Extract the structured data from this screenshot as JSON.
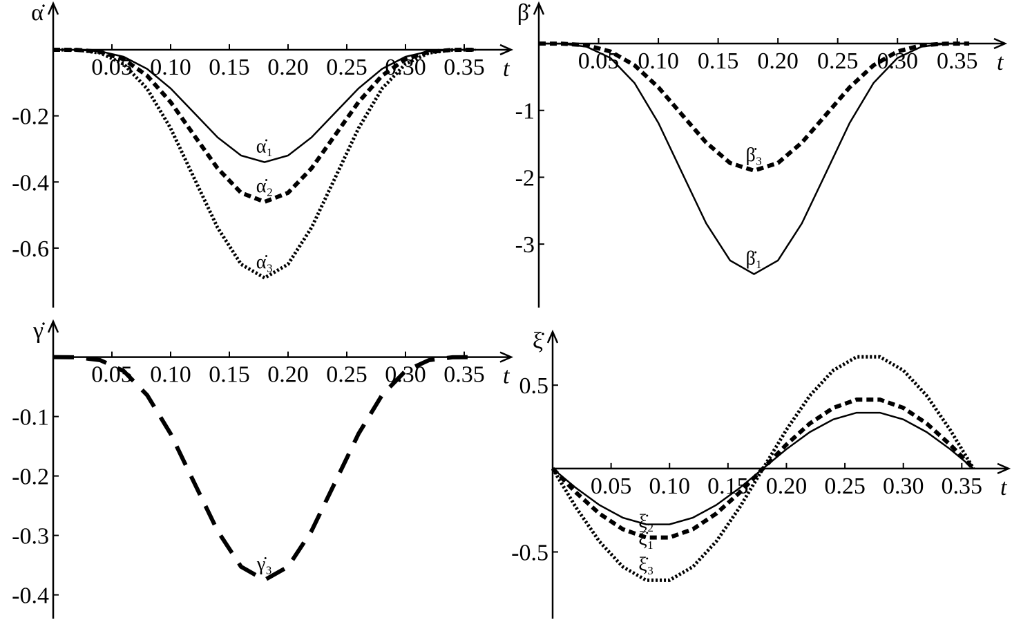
{
  "chart_data": [
    {
      "type": "line",
      "xlabel": "t",
      "ylabel": "α̇",
      "xlim": [
        0,
        0.39
      ],
      "ylim": [
        -0.78,
        0.14
      ],
      "xticks": [
        0.05,
        {
          "value": 0.1,
          "label": "0.10"
        },
        0.15,
        {
          "value": 0.2,
          "label": "0.20"
        },
        0.25,
        {
          "value": 0.3,
          "label": "0.30"
        },
        0.35
      ],
      "yticks": [
        -0.2,
        -0.4,
        -0.6
      ],
      "x": [
        0,
        0.02,
        0.04,
        0.06,
        0.08,
        0.1,
        0.12,
        0.14,
        0.16,
        0.18,
        0.2,
        0.22,
        0.24,
        0.26,
        0.28,
        0.3,
        0.32,
        0.34,
        0.36
      ],
      "series": [
        {
          "name": "α̇₁",
          "color": "#000000",
          "dash": "solid",
          "values": [
            0,
            -0.0003,
            -0.0047,
            -0.0213,
            -0.058,
            -0.117,
            -0.191,
            -0.265,
            -0.32,
            -0.34,
            -0.32,
            -0.265,
            -0.191,
            -0.117,
            -0.058,
            -0.0213,
            -0.0047,
            -0.0003,
            0
          ]
        },
        {
          "name": "α̇₂",
          "color": "#000000",
          "dash": "dashed",
          "values": [
            0,
            -0.0004,
            -0.0063,
            -0.0288,
            -0.0785,
            -0.1584,
            -0.2588,
            -0.3587,
            -0.4326,
            -0.46,
            -0.4326,
            -0.3587,
            -0.2588,
            -0.1584,
            -0.0785,
            -0.0288,
            -0.0063,
            -0.0004,
            0
          ]
        },
        {
          "name": "α̇₃",
          "color": "#000000",
          "dash": "dotted",
          "values": [
            0,
            -0.0006,
            -0.0095,
            -0.0431,
            -0.1178,
            -0.2376,
            -0.3881,
            -0.538,
            -0.6489,
            -0.69,
            -0.6489,
            -0.538,
            -0.3881,
            -0.2376,
            -0.1178,
            -0.0431,
            -0.0095,
            -0.0006,
            0
          ]
        }
      ]
    },
    {
      "type": "line",
      "xlabel": "t",
      "ylabel": "β̇",
      "xlim": [
        0,
        0.39
      ],
      "ylim": [
        -3.95,
        0.6
      ],
      "xticks": [
        0.05,
        {
          "value": 0.1,
          "label": "0.10"
        },
        0.15,
        {
          "value": 0.2,
          "label": "0.20"
        },
        0.25,
        {
          "value": 0.3,
          "label": "0.30"
        },
        0.35
      ],
      "yticks": [
        -1,
        -2,
        -3
      ],
      "x": [
        0,
        0.02,
        0.04,
        0.06,
        0.08,
        0.1,
        0.12,
        0.14,
        0.16,
        0.18,
        0.2,
        0.22,
        0.24,
        0.26,
        0.28,
        0.3,
        0.32,
        0.34,
        0.36
      ],
      "series": [
        {
          "name": "β̇₁",
          "color": "#000000",
          "dash": "solid",
          "values": [
            0,
            -0.0031,
            -0.0473,
            -0.2156,
            -0.5889,
            -1.1878,
            -1.9406,
            -2.69,
            -3.2447,
            -3.45,
            -3.2447,
            -2.69,
            -1.9406,
            -1.1878,
            -0.5889,
            -0.2156,
            -0.0473,
            -0.0031,
            0
          ]
        },
        {
          "name": "β̇₃",
          "color": "#000000",
          "dash": "dashed",
          "values": [
            0,
            -0.0017,
            -0.026,
            -0.1188,
            -0.3243,
            -0.6542,
            -1.0688,
            -1.4814,
            -1.787,
            -1.9,
            -1.787,
            -1.4814,
            -1.0688,
            -0.6542,
            -0.3243,
            -0.1188,
            -0.026,
            -0.0017,
            0
          ]
        }
      ]
    },
    {
      "type": "line",
      "xlabel": "t",
      "ylabel": "γ̇",
      "xlim": [
        0,
        0.39
      ],
      "ylim": [
        -0.44,
        0.06
      ],
      "xticks": [
        0.05,
        {
          "value": 0.1,
          "label": "0.10"
        },
        0.15,
        {
          "value": 0.2,
          "label": "0.20"
        },
        0.25,
        {
          "value": 0.3,
          "label": "0.30"
        },
        0.35
      ],
      "yticks": [
        -0.1,
        -0.2,
        -0.3,
        -0.4
      ],
      "x": [
        0,
        0.02,
        0.04,
        0.06,
        0.08,
        0.1,
        0.12,
        0.14,
        0.16,
        0.18,
        0.2,
        0.22,
        0.24,
        0.26,
        0.28,
        0.3,
        0.32,
        0.34,
        0.36
      ],
      "series": [
        {
          "name": "γ̇₃",
          "color": "#000000",
          "dash": "long-dashed",
          "values": [
            0,
            -0.0003,
            -0.0051,
            -0.0234,
            -0.064,
            -0.1291,
            -0.2109,
            -0.2924,
            -0.3527,
            -0.375,
            -0.3527,
            -0.2924,
            -0.2109,
            -0.1291,
            -0.064,
            -0.0234,
            -0.0051,
            -0.0003,
            0
          ]
        }
      ]
    },
    {
      "type": "line",
      "xlabel": "t",
      "ylabel": "ξ̇",
      "xlim": [
        0,
        0.39
      ],
      "ylim": [
        -0.9,
        0.82
      ],
      "xticks": [
        0.05,
        {
          "value": 0.1,
          "label": "0.10"
        },
        0.15,
        {
          "value": 0.2,
          "label": "0.20"
        },
        0.25,
        {
          "value": 0.3,
          "label": "0.30"
        },
        0.35
      ],
      "yticks": [
        0.5,
        -0.5
      ],
      "x": [
        0,
        0.02,
        0.04,
        0.06,
        0.08,
        0.1,
        0.12,
        0.14,
        0.16,
        0.18,
        0.2,
        0.22,
        0.24,
        0.26,
        0.28,
        0.3,
        0.32,
        0.34,
        0.36
      ],
      "series": [
        {
          "name": "ξ̇₁",
          "color": "#000000",
          "dash": "solid",
          "values": [
            0,
            -0.1163,
            -0.2186,
            -0.2944,
            -0.3348,
            -0.3348,
            -0.2944,
            -0.2186,
            -0.1163,
            0,
            0.1163,
            0.2186,
            0.2944,
            0.3348,
            0.3348,
            0.2944,
            0.2186,
            0.1163,
            0
          ]
        },
        {
          "name": "ξ̇₂",
          "color": "#000000",
          "dash": "dashed",
          "values": [
            0,
            -0.1436,
            -0.27,
            -0.3637,
            -0.4136,
            -0.4136,
            -0.3637,
            -0.27,
            -0.1436,
            0,
            0.1436,
            0.27,
            0.3637,
            0.4136,
            0.4136,
            0.3637,
            0.27,
            0.1436,
            0
          ]
        },
        {
          "name": "ξ̇₃",
          "color": "#000000",
          "dash": "dotted",
          "values": [
            0,
            -0.2326,
            -0.4371,
            -0.5889,
            -0.6697,
            -0.6697,
            -0.5889,
            -0.4371,
            -0.2326,
            0,
            0.2326,
            0.4371,
            0.5889,
            0.6697,
            0.6697,
            0.5889,
            0.4371,
            0.2326,
            0
          ]
        }
      ]
    }
  ]
}
